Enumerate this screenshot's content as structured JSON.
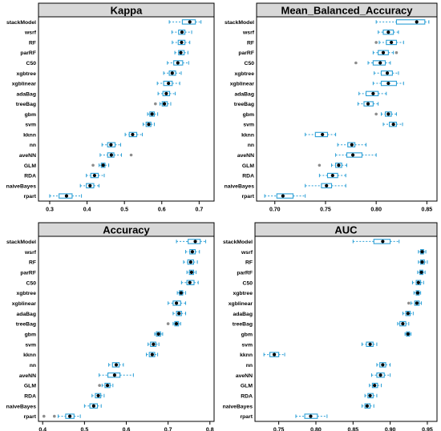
{
  "models": [
    "stackModel",
    "wsrf",
    "RF",
    "parRF",
    "C50",
    "xgbtree",
    "xgblinear",
    "adaBag",
    "treeBag",
    "gbm",
    "svm",
    "kknn",
    "nn",
    "aveNN",
    "GLM",
    "RDA",
    "naiveBayes",
    "rpart"
  ],
  "chart_data": [
    {
      "type": "boxplot",
      "title": "Kappa",
      "xlim": [
        0.27,
        0.74
      ],
      "ticks": [
        0.3,
        0.4,
        0.5,
        0.6,
        0.7
      ],
      "tick_labels": [
        "0.3",
        "0.4",
        "0.5",
        "0.6",
        "0.7"
      ],
      "series": [
        {
          "model": "stackModel",
          "min": 0.62,
          "q1": 0.655,
          "median": 0.675,
          "q3": 0.69,
          "max": 0.705,
          "outliers": []
        },
        {
          "model": "wsrf",
          "min": 0.627,
          "q1": 0.645,
          "median": 0.654,
          "q3": 0.662,
          "max": 0.68,
          "outliers": []
        },
        {
          "model": "RF",
          "min": 0.628,
          "q1": 0.644,
          "median": 0.653,
          "q3": 0.662,
          "max": 0.675,
          "outliers": []
        },
        {
          "model": "parRF",
          "min": 0.635,
          "q1": 0.645,
          "median": 0.651,
          "q3": 0.66,
          "max": 0.67,
          "outliers": []
        },
        {
          "model": "C50",
          "min": 0.615,
          "q1": 0.632,
          "median": 0.643,
          "q3": 0.656,
          "max": 0.672,
          "outliers": []
        },
        {
          "model": "xgbtree",
          "min": 0.605,
          "q1": 0.62,
          "median": 0.628,
          "q3": 0.637,
          "max": 0.652,
          "outliers": []
        },
        {
          "model": "xgblinear",
          "min": 0.588,
          "q1": 0.605,
          "median": 0.618,
          "q3": 0.628,
          "max": 0.648,
          "outliers": []
        },
        {
          "model": "adaBag",
          "min": 0.59,
          "q1": 0.603,
          "median": 0.612,
          "q3": 0.621,
          "max": 0.636,
          "outliers": []
        },
        {
          "model": "treeBag",
          "min": 0.595,
          "q1": 0.601,
          "median": 0.607,
          "q3": 0.615,
          "max": 0.624,
          "outliers": [
            0.583
          ]
        },
        {
          "model": "gbm",
          "min": 0.562,
          "q1": 0.568,
          "median": 0.574,
          "q3": 0.58,
          "max": 0.589,
          "outliers": []
        },
        {
          "model": "svm",
          "min": 0.55,
          "q1": 0.558,
          "median": 0.565,
          "q3": 0.571,
          "max": 0.58,
          "outliers": []
        },
        {
          "model": "kknn",
          "min": 0.502,
          "q1": 0.513,
          "median": 0.522,
          "q3": 0.533,
          "max": 0.548,
          "outliers": []
        },
        {
          "model": "nn",
          "min": 0.44,
          "q1": 0.455,
          "median": 0.464,
          "q3": 0.475,
          "max": 0.49,
          "outliers": []
        },
        {
          "model": "aveNN",
          "min": 0.435,
          "q1": 0.455,
          "median": 0.465,
          "q3": 0.472,
          "max": 0.492,
          "outliers": [
            0.518
          ]
        },
        {
          "model": "GLM",
          "min": 0.432,
          "q1": 0.438,
          "median": 0.443,
          "q3": 0.448,
          "max": 0.458,
          "outliers": [
            0.416
          ]
        },
        {
          "model": "RDA",
          "min": 0.398,
          "q1": 0.41,
          "median": 0.42,
          "q3": 0.43,
          "max": 0.446,
          "outliers": []
        },
        {
          "model": "naiveBayes",
          "min": 0.382,
          "q1": 0.398,
          "median": 0.408,
          "q3": 0.418,
          "max": 0.432,
          "outliers": []
        },
        {
          "model": "rpart",
          "min": 0.3,
          "q1": 0.325,
          "median": 0.345,
          "q3": 0.36,
          "max": 0.385,
          "outliers": []
        }
      ]
    },
    {
      "type": "boxplot",
      "title": "Mean_Balanced_Accuracy",
      "xlim": [
        0.682,
        0.86
      ],
      "ticks": [
        0.7,
        0.75,
        0.8,
        0.85
      ],
      "tick_labels": [
        "0.70",
        "0.75",
        "0.80",
        "0.85"
      ],
      "series": [
        {
          "model": "stackModel",
          "min": 0.8,
          "q1": 0.82,
          "median": 0.84,
          "q3": 0.848,
          "max": 0.852,
          "outliers": []
        },
        {
          "model": "wsrf",
          "min": 0.802,
          "q1": 0.807,
          "median": 0.812,
          "q3": 0.817,
          "max": 0.822,
          "outliers": []
        },
        {
          "model": "RF",
          "min": 0.803,
          "q1": 0.81,
          "median": 0.815,
          "q3": 0.82,
          "max": 0.827,
          "outliers": [
            0.8
          ]
        },
        {
          "model": "parRF",
          "min": 0.797,
          "q1": 0.802,
          "median": 0.807,
          "q3": 0.812,
          "max": 0.817,
          "outliers": [
            0.82
          ]
        },
        {
          "model": "C50",
          "min": 0.792,
          "q1": 0.797,
          "median": 0.804,
          "q3": 0.809,
          "max": 0.814,
          "outliers": [
            0.78
          ]
        },
        {
          "model": "xgbtree",
          "min": 0.798,
          "q1": 0.805,
          "median": 0.811,
          "q3": 0.816,
          "max": 0.822,
          "outliers": []
        },
        {
          "model": "xgblinear",
          "min": 0.797,
          "q1": 0.805,
          "median": 0.812,
          "q3": 0.82,
          "max": 0.827,
          "outliers": []
        },
        {
          "model": "adaBag",
          "min": 0.783,
          "q1": 0.79,
          "median": 0.797,
          "q3": 0.802,
          "max": 0.81,
          "outliers": []
        },
        {
          "model": "treeBag",
          "min": 0.782,
          "q1": 0.788,
          "median": 0.792,
          "q3": 0.797,
          "max": 0.802,
          "outliers": []
        },
        {
          "model": "gbm",
          "min": 0.805,
          "q1": 0.809,
          "median": 0.812,
          "q3": 0.815,
          "max": 0.82,
          "outliers": [
            0.8
          ]
        },
        {
          "model": "svm",
          "min": 0.807,
          "q1": 0.813,
          "median": 0.817,
          "q3": 0.82,
          "max": 0.826,
          "outliers": []
        },
        {
          "model": "kknn",
          "min": 0.73,
          "q1": 0.74,
          "median": 0.747,
          "q3": 0.752,
          "max": 0.76,
          "outliers": []
        },
        {
          "model": "nn",
          "min": 0.762,
          "q1": 0.772,
          "median": 0.776,
          "q3": 0.779,
          "max": 0.79,
          "outliers": []
        },
        {
          "model": "aveNN",
          "min": 0.76,
          "q1": 0.771,
          "median": 0.777,
          "q3": 0.786,
          "max": 0.8,
          "outliers": []
        },
        {
          "model": "GLM",
          "min": 0.756,
          "q1": 0.76,
          "median": 0.763,
          "q3": 0.766,
          "max": 0.771,
          "outliers": [
            0.744
          ]
        },
        {
          "model": "RDA",
          "min": 0.744,
          "q1": 0.752,
          "median": 0.757,
          "q3": 0.762,
          "max": 0.77,
          "outliers": []
        },
        {
          "model": "naiveBayes",
          "min": 0.73,
          "q1": 0.746,
          "median": 0.751,
          "q3": 0.756,
          "max": 0.77,
          "outliers": []
        },
        {
          "model": "rpart",
          "min": 0.69,
          "q1": 0.702,
          "median": 0.708,
          "q3": 0.718,
          "max": 0.73,
          "outliers": []
        }
      ]
    },
    {
      "type": "boxplot",
      "title": "Accuracy",
      "xlim": [
        0.39,
        0.81
      ],
      "ticks": [
        0.4,
        0.5,
        0.6,
        0.7,
        0.8
      ],
      "tick_labels": [
        "0.4",
        "0.5",
        "0.6",
        "0.7",
        "0.8"
      ],
      "series": [
        {
          "model": "stackModel",
          "min": 0.72,
          "q1": 0.748,
          "median": 0.765,
          "q3": 0.777,
          "max": 0.79,
          "outliers": []
        },
        {
          "model": "wsrf",
          "min": 0.742,
          "q1": 0.752,
          "median": 0.758,
          "q3": 0.765,
          "max": 0.775,
          "outliers": []
        },
        {
          "model": "RF",
          "min": 0.737,
          "q1": 0.747,
          "median": 0.754,
          "q3": 0.761,
          "max": 0.77,
          "outliers": []
        },
        {
          "model": "parRF",
          "min": 0.745,
          "q1": 0.751,
          "median": 0.756,
          "q3": 0.761,
          "max": 0.767,
          "outliers": []
        },
        {
          "model": "C50",
          "min": 0.732,
          "q1": 0.745,
          "median": 0.752,
          "q3": 0.762,
          "max": 0.772,
          "outliers": []
        },
        {
          "model": "xgbtree",
          "min": 0.722,
          "q1": 0.727,
          "median": 0.731,
          "q3": 0.735,
          "max": 0.742,
          "outliers": []
        },
        {
          "model": "xgblinear",
          "min": 0.7,
          "q1": 0.712,
          "median": 0.72,
          "q3": 0.73,
          "max": 0.742,
          "outliers": []
        },
        {
          "model": "adaBag",
          "min": 0.712,
          "q1": 0.72,
          "median": 0.726,
          "q3": 0.732,
          "max": 0.742,
          "outliers": []
        },
        {
          "model": "treeBag",
          "min": 0.712,
          "q1": 0.716,
          "median": 0.72,
          "q3": 0.725,
          "max": 0.73,
          "outliers": [
            0.7
          ]
        },
        {
          "model": "gbm",
          "min": 0.668,
          "q1": 0.672,
          "median": 0.677,
          "q3": 0.682,
          "max": 0.687,
          "outliers": []
        },
        {
          "model": "svm",
          "min": 0.652,
          "q1": 0.658,
          "median": 0.665,
          "q3": 0.671,
          "max": 0.678,
          "outliers": []
        },
        {
          "model": "kknn",
          "min": 0.648,
          "q1": 0.655,
          "median": 0.662,
          "q3": 0.668,
          "max": 0.675,
          "outliers": []
        },
        {
          "model": "nn",
          "min": 0.558,
          "q1": 0.567,
          "median": 0.576,
          "q3": 0.583,
          "max": 0.593,
          "outliers": []
        },
        {
          "model": "aveNN",
          "min": 0.535,
          "q1": 0.556,
          "median": 0.572,
          "q3": 0.585,
          "max": 0.617,
          "outliers": []
        },
        {
          "model": "GLM",
          "min": 0.542,
          "q1": 0.549,
          "median": 0.555,
          "q3": 0.561,
          "max": 0.568,
          "outliers": [
            0.536
          ]
        },
        {
          "model": "RDA",
          "min": 0.518,
          "q1": 0.526,
          "median": 0.533,
          "q3": 0.539,
          "max": 0.547,
          "outliers": []
        },
        {
          "model": "naiveBayes",
          "min": 0.5,
          "q1": 0.513,
          "median": 0.522,
          "q3": 0.531,
          "max": 0.54,
          "outliers": []
        },
        {
          "model": "rpart",
          "min": 0.437,
          "q1": 0.455,
          "median": 0.465,
          "q3": 0.475,
          "max": 0.49,
          "outliers": [
            0.403,
            0.428
          ]
        }
      ]
    },
    {
      "type": "boxplot",
      "title": "AUC",
      "xlim": [
        0.718,
        0.963
      ],
      "ticks": [
        0.75,
        0.8,
        0.85,
        0.9,
        0.95
      ],
      "tick_labels": [
        "0.75",
        "0.80",
        "0.85",
        "0.90",
        "0.95"
      ],
      "series": [
        {
          "model": "stackModel",
          "min": 0.85,
          "q1": 0.878,
          "median": 0.89,
          "q3": 0.9,
          "max": 0.912,
          "outliers": []
        },
        {
          "model": "wsrf",
          "min": 0.938,
          "q1": 0.941,
          "median": 0.943,
          "q3": 0.945,
          "max": 0.948,
          "outliers": []
        },
        {
          "model": "RF",
          "min": 0.938,
          "q1": 0.941,
          "median": 0.943,
          "q3": 0.946,
          "max": 0.95,
          "outliers": []
        },
        {
          "model": "parRF",
          "min": 0.937,
          "q1": 0.94,
          "median": 0.942,
          "q3": 0.944,
          "max": 0.947,
          "outliers": []
        },
        {
          "model": "C50",
          "min": 0.93,
          "q1": 0.935,
          "median": 0.938,
          "q3": 0.941,
          "max": 0.945,
          "outliers": []
        },
        {
          "model": "xgbtree",
          "min": 0.932,
          "q1": 0.935,
          "median": 0.937,
          "q3": 0.939,
          "max": 0.941,
          "outliers": []
        },
        {
          "model": "xgblinear",
          "min": 0.928,
          "q1": 0.933,
          "median": 0.936,
          "q3": 0.939,
          "max": 0.942,
          "outliers": [
            0.925
          ]
        },
        {
          "model": "adaBag",
          "min": 0.917,
          "q1": 0.921,
          "median": 0.924,
          "q3": 0.927,
          "max": 0.931,
          "outliers": []
        },
        {
          "model": "treeBag",
          "min": 0.91,
          "q1": 0.913,
          "median": 0.917,
          "q3": 0.921,
          "max": 0.925,
          "outliers": []
        },
        {
          "model": "gbm",
          "min": 0.92,
          "q1": 0.922,
          "median": 0.924,
          "q3": 0.926,
          "max": 0.928,
          "outliers": []
        },
        {
          "model": "svm",
          "min": 0.862,
          "q1": 0.868,
          "median": 0.873,
          "q3": 0.877,
          "max": 0.882,
          "outliers": []
        },
        {
          "model": "kknn",
          "min": 0.73,
          "q1": 0.738,
          "median": 0.744,
          "q3": 0.75,
          "max": 0.758,
          "outliers": []
        },
        {
          "model": "nn",
          "min": 0.882,
          "q1": 0.886,
          "median": 0.89,
          "q3": 0.894,
          "max": 0.9,
          "outliers": []
        },
        {
          "model": "aveNN",
          "min": 0.875,
          "q1": 0.882,
          "median": 0.887,
          "q3": 0.892,
          "max": 0.9,
          "outliers": []
        },
        {
          "model": "GLM",
          "min": 0.872,
          "q1": 0.876,
          "median": 0.879,
          "q3": 0.883,
          "max": 0.888,
          "outliers": []
        },
        {
          "model": "RDA",
          "min": 0.866,
          "q1": 0.87,
          "median": 0.873,
          "q3": 0.877,
          "max": 0.882,
          "outliers": []
        },
        {
          "model": "naiveBayes",
          "min": 0.862,
          "q1": 0.866,
          "median": 0.869,
          "q3": 0.873,
          "max": 0.878,
          "outliers": []
        },
        {
          "model": "rpart",
          "min": 0.773,
          "q1": 0.785,
          "median": 0.793,
          "q3": 0.802,
          "max": 0.815,
          "outliers": []
        }
      ]
    }
  ],
  "colors": {
    "box": "#2a9fd6",
    "median_dot": "#000000",
    "outlier": "#8c8c8c",
    "title_bg": "#d8d8d8",
    "frame": "#000000"
  }
}
